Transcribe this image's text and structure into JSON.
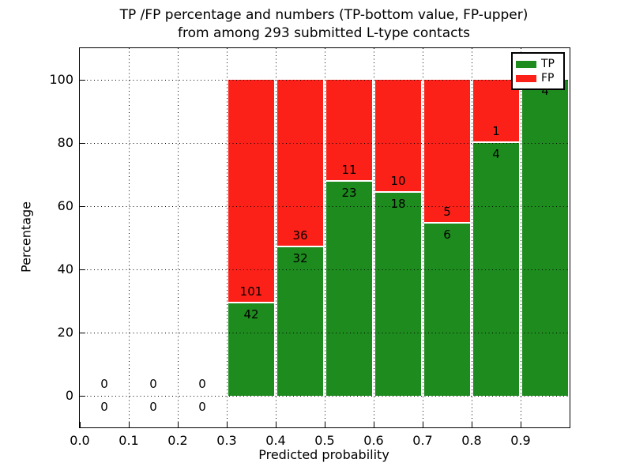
{
  "chart_data": {
    "type": "bar",
    "stacked": true,
    "normalized": "percent",
    "title_lines": [
      "TP /FP percentage and numbers (TP-bottom value, FP-upper)",
      "from among 293 submitted L-type contacts"
    ],
    "title": "TP /FP percentage and numbers (TP-bottom value, FP-upper) from among 293 submitted L-type contacts",
    "xlabel": "Predicted probability",
    "ylabel": "Percentage",
    "total_contacts": 293,
    "bin_width": 0.1,
    "bin_starts": [
      0.0,
      0.1,
      0.2,
      0.3,
      0.4,
      0.5,
      0.6,
      0.7,
      0.8,
      0.9
    ],
    "x_tick_labels": [
      "0.0",
      "0.1",
      "0.2",
      "0.3",
      "0.4",
      "0.5",
      "0.6",
      "0.7",
      "0.8",
      "0.9"
    ],
    "y_tick_values": [
      0,
      20,
      40,
      60,
      80,
      100
    ],
    "xlim": [
      0.0,
      1.0
    ],
    "ylim_display": [
      -10,
      110
    ],
    "grid": "dotted",
    "legend_position": "upper right",
    "series": [
      {
        "name": "TP",
        "color": "#1e8b1e",
        "values": [
          0,
          0,
          0,
          42,
          32,
          23,
          18,
          6,
          4,
          4
        ]
      },
      {
        "name": "FP",
        "color": "#fb2118",
        "values": [
          0,
          0,
          0,
          101,
          36,
          11,
          10,
          5,
          1,
          0
        ]
      }
    ],
    "tp_percent_by_bin": [
      null,
      null,
      null,
      29.4,
      47.1,
      67.6,
      64.3,
      54.5,
      80.0,
      100.0
    ],
    "colors": {
      "tp": "#1e8b1e",
      "fp": "#fb2118",
      "grid": "#000000",
      "background": "#ffffff"
    }
  }
}
